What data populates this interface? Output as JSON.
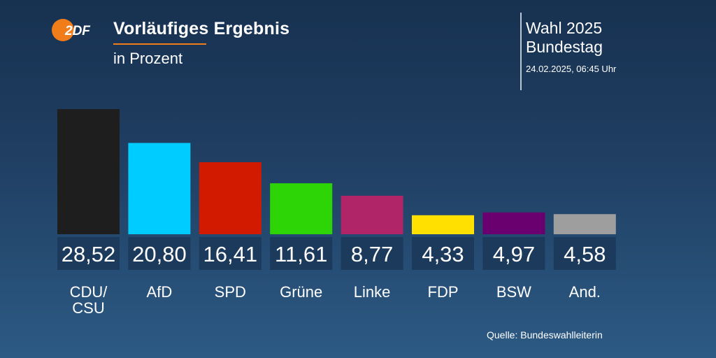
{
  "header": {
    "logo_text": "ZDF",
    "title": "Vorläufiges Ergebnis",
    "subtitle": "in Prozent"
  },
  "meta": {
    "line1": "Wahl 2025",
    "line2": "Bundestag",
    "timestamp": "24.02.2025, 06:45 Uhr"
  },
  "footer": {
    "source": "Quelle: Bundeswahlleiterin"
  },
  "colors": {
    "accent": "#f07d19",
    "value_box": "#1b3a5c"
  },
  "chart_data": {
    "type": "bar",
    "categories": [
      [
        "CDU/",
        "CSU"
      ],
      [
        "AfD"
      ],
      [
        "SPD"
      ],
      [
        "Grüne"
      ],
      [
        "Linke"
      ],
      [
        "FDP"
      ],
      [
        "BSW"
      ],
      [
        "And."
      ]
    ],
    "values": [
      28.52,
      20.8,
      16.41,
      11.61,
      8.77,
      4.33,
      4.97,
      4.58
    ],
    "value_labels": [
      "28,52",
      "20,80",
      "16,41",
      "11,61",
      "8,77",
      "4,33",
      "4,97",
      "4,58"
    ],
    "colors": [
      "#1e1e1e",
      "#00ccff",
      "#d21a00",
      "#2ed506",
      "#b02468",
      "#ffe000",
      "#6a0070",
      "#9e9e9e"
    ],
    "ylim": [
      0,
      28.52
    ],
    "grid": false,
    "legend": "none"
  }
}
